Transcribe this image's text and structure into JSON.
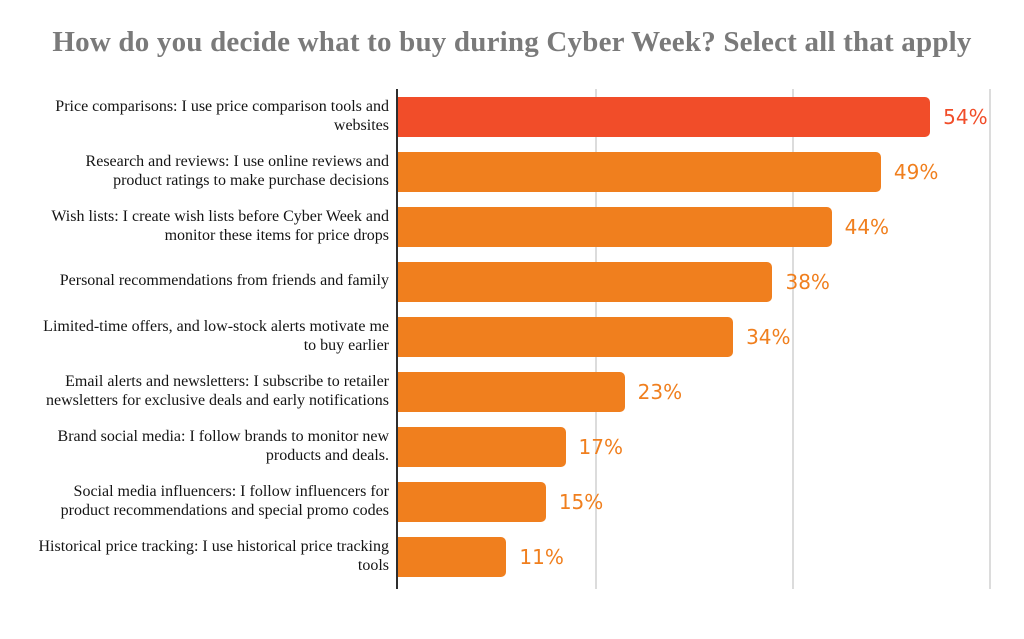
{
  "title": "How do you decide what to buy during Cyber Week? Select all that apply",
  "chart_data": {
    "type": "bar",
    "orientation": "horizontal",
    "title": "How do you decide what to buy during Cyber Week? Select all that apply",
    "categories": [
      "Price comparisons: I use price comparison tools and websites",
      "Research and reviews: I use online reviews and product ratings to make purchase decisions",
      "Wish lists: I create wish lists before Cyber Week and monitor these items for price drops",
      "Personal recommendations from friends and family",
      "Limited-time offers, and low-stock alerts motivate me to buy earlier",
      "Email alerts and newsletters: I subscribe to retailer newsletters for exclusive deals and early notifications",
      "Brand social media: I follow brands to monitor new products and deals.",
      "Social media influencers: I follow influencers for product recommendations and special promo codes",
      "Historical price tracking: I use historical price tracking tools"
    ],
    "values": [
      54,
      49,
      44,
      38,
      34,
      23,
      17,
      15,
      11
    ],
    "value_labels": [
      "54%",
      "49%",
      "44%",
      "38%",
      "34%",
      "23%",
      "17%",
      "15%",
      "11%"
    ],
    "bar_colors": [
      "#F14D29",
      "#F07F1E",
      "#F07F1E",
      "#F07F1E",
      "#F07F1E",
      "#F07F1E",
      "#F07F1E",
      "#F07F1E",
      "#F07F1E"
    ],
    "xlabel": "",
    "ylabel": "",
    "xlim": [
      0,
      62
    ],
    "gridlines_percent": [
      20,
      40,
      60
    ],
    "grid": "vertical-only",
    "legend": "none",
    "colors": {
      "bar_highlight": "#F14D29",
      "bar_default": "#F07F1E",
      "title_text": "#7A7A7A",
      "category_text": "#141414",
      "gridline": "#DCDCDC",
      "axis_line": "#2E2E2E",
      "background": "#FFFFFF"
    }
  }
}
